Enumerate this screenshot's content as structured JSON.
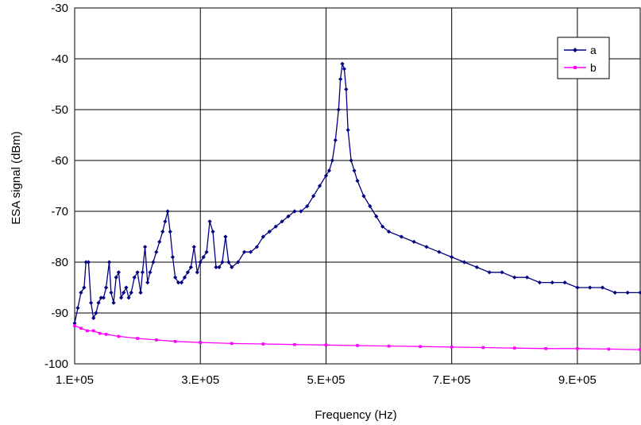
{
  "chart_data": {
    "type": "line",
    "title": "",
    "xlabel": "Frequency (Hz)",
    "ylabel": "ESA signal (dBm)",
    "xlim": [
      100000,
      1000000
    ],
    "ylim": [
      -100,
      -30
    ],
    "x_ticks": [
      100000,
      300000,
      500000,
      700000,
      900000
    ],
    "x_tick_labels": [
      "1.E+05",
      "3.E+05",
      "5.E+05",
      "7.E+05",
      "9.E+05"
    ],
    "y_ticks": [
      -30,
      -40,
      -50,
      -60,
      -70,
      -80,
      -90,
      -100
    ],
    "y_tick_labels": [
      "-30",
      "-40",
      "-50",
      "-60",
      "-70",
      "-80",
      "-90",
      "-100"
    ],
    "grid": true,
    "legend_position": "top-right",
    "series": [
      {
        "name": "a",
        "color": "#000080",
        "marker": "diamond",
        "x": [
          100000,
          105000,
          110000,
          115000,
          118000,
          122000,
          126000,
          130000,
          134000,
          138000,
          142000,
          146000,
          150000,
          155000,
          158000,
          162000,
          166000,
          170000,
          174000,
          178000,
          182000,
          186000,
          190000,
          195000,
          200000,
          205000,
          208000,
          212000,
          216000,
          220000,
          225000,
          230000,
          235000,
          240000,
          244000,
          248000,
          252000,
          256000,
          260000,
          265000,
          270000,
          275000,
          280000,
          285000,
          290000,
          295000,
          300000,
          305000,
          310000,
          315000,
          320000,
          325000,
          330000,
          335000,
          340000,
          345000,
          350000,
          360000,
          370000,
          380000,
          390000,
          400000,
          410000,
          420000,
          430000,
          440000,
          450000,
          460000,
          470000,
          480000,
          490000,
          500000,
          505000,
          510000,
          515000,
          520000,
          523000,
          526000,
          529000,
          532000,
          535000,
          540000,
          545000,
          550000,
          560000,
          570000,
          580000,
          590000,
          600000,
          620000,
          640000,
          660000,
          680000,
          700000,
          720000,
          740000,
          760000,
          780000,
          800000,
          820000,
          840000,
          860000,
          880000,
          900000,
          920000,
          940000,
          960000,
          980000,
          1000000
        ],
        "y": [
          -92,
          -89,
          -86,
          -85,
          -80,
          -80,
          -88,
          -91,
          -90,
          -88,
          -87,
          -87,
          -85,
          -80,
          -86,
          -88,
          -83,
          -82,
          -87,
          -86,
          -85,
          -87,
          -86,
          -83,
          -82,
          -86,
          -82,
          -77,
          -84,
          -82,
          -80,
          -78,
          -76,
          -74,
          -72,
          -70,
          -74,
          -79,
          -83,
          -84,
          -84,
          -83,
          -82,
          -81,
          -77,
          -82,
          -80,
          -79,
          -78,
          -72,
          -74,
          -81,
          -81,
          -80,
          -75,
          -80,
          -81,
          -80,
          -78,
          -78,
          -77,
          -75,
          -74,
          -73,
          -72,
          -71,
          -70,
          -70,
          -69,
          -67,
          -65,
          -63,
          -62,
          -60,
          -56,
          -50,
          -44,
          -41,
          -42,
          -46,
          -54,
          -60,
          -62,
          -64,
          -67,
          -69,
          -71,
          -73,
          -74,
          -75,
          -76,
          -77,
          -78,
          -79,
          -80,
          -81,
          -82,
          -82,
          -83,
          -83,
          -84,
          -84,
          -84,
          -85,
          -85,
          -85,
          -86,
          -86,
          -86
        ]
      },
      {
        "name": "b",
        "color": "#FF00FF",
        "marker": "square",
        "x": [
          100000,
          110000,
          120000,
          130000,
          140000,
          150000,
          170000,
          200000,
          230000,
          260000,
          300000,
          350000,
          400000,
          450000,
          500000,
          550000,
          600000,
          650000,
          700000,
          750000,
          800000,
          850000,
          900000,
          950000,
          1000000
        ],
        "y": [
          -92.5,
          -93,
          -93.5,
          -93.5,
          -94,
          -94.2,
          -94.6,
          -95,
          -95.3,
          -95.6,
          -95.8,
          -96,
          -96.1,
          -96.2,
          -96.3,
          -96.4,
          -96.5,
          -96.6,
          -96.7,
          -96.8,
          -96.9,
          -97,
          -97,
          -97.1,
          -97.2
        ]
      }
    ]
  }
}
